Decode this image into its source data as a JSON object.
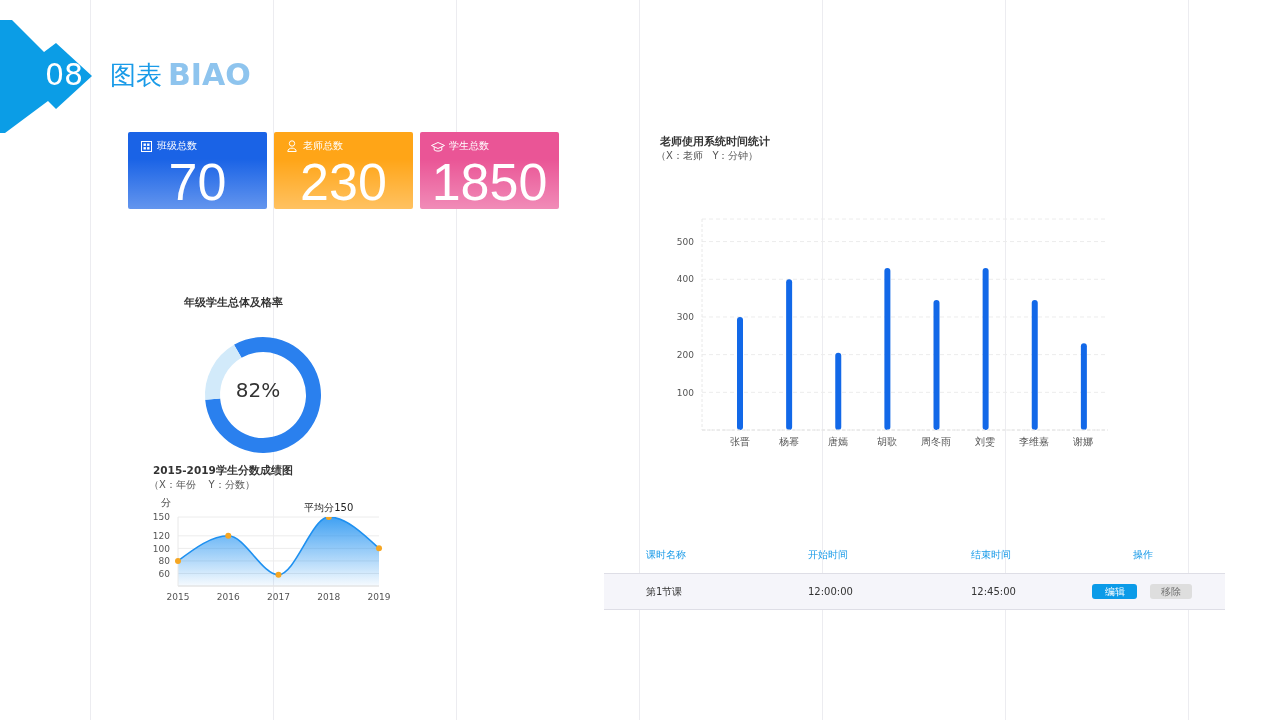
{
  "chart_data": [
    {
      "type": "other",
      "title": "图表",
      "annotations": [
        "08",
        "BIAO"
      ],
      "categories": [
        "班级总数",
        "老师总数",
        "学生总数"
      ],
      "values": [
        70,
        230,
        1850
      ],
      "colors": [
        "#1a63e6",
        "#ffa517",
        "#ea5596"
      ],
      "data_labels": true
    },
    {
      "type": "donut",
      "title": "年级学生总体及格率",
      "categories": [
        null,
        null
      ],
      "values": [
        82,
        18
      ],
      "colors": [
        "#2a80ee",
        "#d2eafa"
      ],
      "annotations": [
        "82%"
      ]
    },
    {
      "type": "area",
      "title": "2015-2019学生分数成绩图",
      "subtitle": "（X：年份    Y：分数）",
      "ylabel": "分",
      "categories": [
        "2015",
        "2016",
        "2017",
        "2018",
        "2019"
      ],
      "series": [
        {
          "color": "#1e90f0",
          "colors": [
            "#f5a623",
            "#f5a623",
            "#f5a623",
            "#f5a623",
            "#f5a623"
          ],
          "values": [
            80,
            120,
            58,
            150,
            100
          ]
        }
      ],
      "ylim": [
        40,
        150
      ],
      "yticks": [
        60,
        80,
        100,
        120,
        150
      ],
      "grid": "y",
      "marker": "circle",
      "annotations": [
        {
          "text": "平均分150",
          "x": "2018",
          "y": 150
        }
      ]
    },
    {
      "type": "bar",
      "title": "老师使用系统时间统计",
      "subtitle": "（X：老师   Y：分钟）",
      "categories": [
        "张晋",
        "杨幂",
        "唐嫣",
        "胡歌",
        "周冬雨",
        "刘雯",
        "李维嘉",
        "谢娜"
      ],
      "values": [
        300,
        400,
        205,
        430,
        345,
        430,
        345,
        230
      ],
      "color": "#1268e8",
      "ylim": [
        0,
        560
      ],
      "yticks": [
        100,
        200,
        300,
        400,
        500
      ],
      "grid": "y"
    },
    {
      "type": "other",
      "categories": [
        "课时名称",
        "开始时间",
        "结束时间",
        "操作"
      ],
      "annotations": [
        "第1节课",
        "12:00:00",
        "12:45:00",
        "编辑",
        "移除"
      ]
    }
  ]
}
